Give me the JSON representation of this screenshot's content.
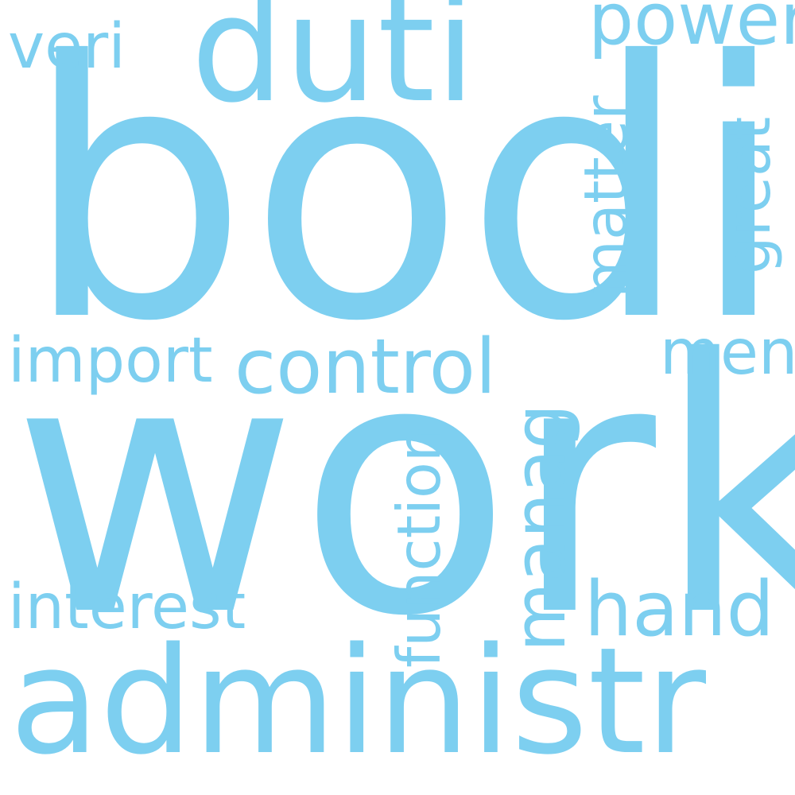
{
  "cloud": {
    "color": "#7dcff0",
    "background": "#ffffff",
    "words": {
      "bodi": "bodi",
      "work": "work",
      "administr": "administr",
      "duti": "duti",
      "control": "control",
      "import": "import",
      "interest": "interest",
      "veri": "veri",
      "power": "power",
      "men": "men",
      "hand": "hand",
      "matter": "matter",
      "great": "great",
      "function": "function",
      "manag": "manag"
    }
  }
}
